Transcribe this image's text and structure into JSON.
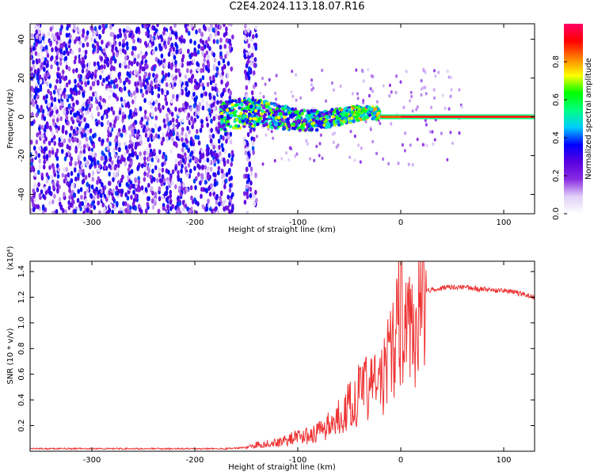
{
  "title": "C2E4.2024.113.18.07.R16",
  "colors": {
    "snr_line": "#ee3333",
    "axis": "#000000",
    "background": "#ffffff"
  },
  "chart_data": [
    {
      "type": "heatmap",
      "xlabel": "Height of straight line (km)",
      "ylabel": "Frequency (Hz)",
      "xlim": [
        -360,
        130
      ],
      "ylim": [
        -50,
        48
      ],
      "xticks": [
        -300,
        -200,
        -100,
        0,
        100
      ],
      "xtick_labels": [
        "-300",
        "-200",
        "-100",
        "0",
        "100"
      ],
      "yticks": [
        -40,
        -20,
        0,
        20,
        40
      ],
      "ytick_labels": [
        "-40",
        "-20",
        "0",
        "20",
        "40"
      ],
      "colorbar": {
        "label": "Normalized spectral amplitude",
        "range": [
          0,
          1
        ],
        "ticks": [
          0.0,
          0.2,
          0.4,
          0.6,
          0.8
        ],
        "tick_labels": [
          "0.0",
          "0.2",
          "0.4",
          "0.6",
          "0.8"
        ],
        "stops": [
          "#ffffff",
          "#e0d0f8",
          "#8a2be2",
          "#5a00e0",
          "#0000ff",
          "#00ccff",
          "#00ff80",
          "#00ff00",
          "#ffff00",
          "#ff8000",
          "#ff0000",
          "#ff0066"
        ]
      },
      "regions": [
        {
          "name": "noise",
          "x_range": [
            -360,
            -140
          ],
          "f_range": [
            -50,
            48
          ],
          "level": 0.15
        },
        {
          "name": "transition",
          "x_range": [
            -175,
            -20
          ],
          "f_range": [
            -8,
            8
          ],
          "level": 0.5
        },
        {
          "name": "carrier",
          "x_range": [
            0,
            130
          ],
          "f_center": 0,
          "level": 0.95
        }
      ]
    },
    {
      "type": "line",
      "xlabel": "Height of straight line (km)",
      "ylabel": "SNR (10 * v/v)",
      "y_multiplier": "(x10⁴)",
      "xlim": [
        -360,
        130
      ],
      "ylim": [
        0,
        1.48
      ],
      "xticks": [
        -300,
        -200,
        -100,
        0,
        100
      ],
      "xtick_labels": [
        "-300",
        "-200",
        "-100",
        "0",
        "100"
      ],
      "yticks": [
        0.2,
        0.4,
        0.6,
        0.8,
        1.0,
        1.2,
        1.4
      ],
      "ytick_labels": [
        "0.2",
        "0.4",
        "0.6",
        "0.8",
        "1.0",
        "1.2",
        "1.4"
      ],
      "series": [
        {
          "name": "SNR",
          "x": [
            -360,
            -300,
            -250,
            -200,
            -170,
            -150,
            -140,
            -130,
            -120,
            -110,
            -100,
            -90,
            -80,
            -70,
            -60,
            -50,
            -40,
            -30,
            -20,
            -15,
            -10,
            -5,
            0,
            5,
            10,
            15,
            20,
            25,
            30,
            40,
            50,
            60,
            70,
            80,
            90,
            100,
            110,
            120,
            130
          ],
          "y": [
            0.02,
            0.02,
            0.02,
            0.02,
            0.02,
            0.03,
            0.05,
            0.06,
            0.07,
            0.09,
            0.11,
            0.12,
            0.15,
            0.2,
            0.28,
            0.35,
            0.45,
            0.5,
            0.55,
            0.6,
            0.75,
            0.95,
            1.1,
            1.0,
            0.9,
            0.95,
            1.15,
            1.25,
            1.26,
            1.27,
            1.28,
            1.28,
            1.27,
            1.26,
            1.25,
            1.25,
            1.24,
            1.22,
            1.2
          ]
        }
      ]
    }
  ]
}
